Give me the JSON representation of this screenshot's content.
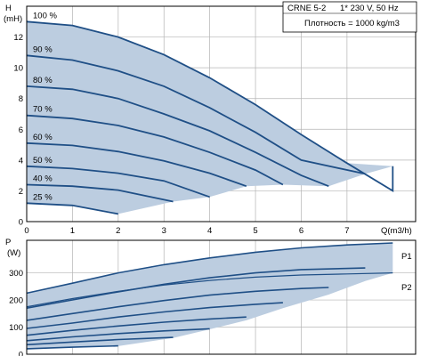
{
  "info": {
    "model": "CRNE 5-2",
    "supply": "1* 230 V, 50 Hz",
    "density": "Плотность = 1000 kg/m3"
  },
  "colors": {
    "area": "#bccde0",
    "curve": "#1f4f86",
    "grid": "#b4b4b4"
  },
  "chart_data": [
    {
      "type": "line",
      "name": "head",
      "ylabel_top": "H",
      "ylabel_unit": "(mH)",
      "xlabel": "Q(m3/h)",
      "xlim": [
        0,
        8.5
      ],
      "ylim": [
        0,
        14
      ],
      "xticks": [
        0,
        1,
        2,
        3,
        4,
        5,
        6,
        7
      ],
      "yticks": [
        0,
        2,
        4,
        6,
        8,
        10,
        12
      ],
      "grid": true,
      "speeds": [
        {
          "label": "100 %",
          "points": [
            [
              0,
              13.0
            ],
            [
              1,
              12.75
            ],
            [
              2,
              12.0
            ],
            [
              3,
              10.85
            ],
            [
              4,
              9.35
            ],
            [
              5,
              7.6
            ],
            [
              6,
              5.65
            ],
            [
              7,
              3.8
            ],
            [
              8,
              2.0
            ],
            [
              8.0,
              3.6
            ]
          ]
        },
        {
          "label": "90 %",
          "points": [
            [
              0,
              10.8
            ],
            [
              1,
              10.5
            ],
            [
              2,
              9.8
            ],
            [
              3,
              8.8
            ],
            [
              4,
              7.4
            ],
            [
              5,
              5.8
            ],
            [
              6,
              4.0
            ],
            [
              7.4,
              3.1
            ]
          ]
        },
        {
          "label": "80 %",
          "points": [
            [
              0,
              8.8
            ],
            [
              1,
              8.6
            ],
            [
              2,
              8.0
            ],
            [
              3,
              7.0
            ],
            [
              4,
              5.9
            ],
            [
              5,
              4.5
            ],
            [
              6,
              3.0
            ],
            [
              6.6,
              2.3
            ]
          ]
        },
        {
          "label": "70 %",
          "points": [
            [
              0,
              6.9
            ],
            [
              1,
              6.7
            ],
            [
              2,
              6.25
            ],
            [
              3,
              5.5
            ],
            [
              4,
              4.5
            ],
            [
              5,
              3.35
            ],
            [
              5.6,
              2.4
            ]
          ]
        },
        {
          "label": "60 %",
          "points": [
            [
              0,
              5.1
            ],
            [
              1,
              4.95
            ],
            [
              2,
              4.55
            ],
            [
              3,
              3.95
            ],
            [
              4,
              3.15
            ],
            [
              4.8,
              2.3
            ]
          ]
        },
        {
          "label": "50 %",
          "points": [
            [
              0,
              3.6
            ],
            [
              1,
              3.45
            ],
            [
              2,
              3.15
            ],
            [
              3,
              2.65
            ],
            [
              4,
              1.6
            ]
          ]
        },
        {
          "label": "40 %",
          "points": [
            [
              0,
              2.4
            ],
            [
              1,
              2.3
            ],
            [
              2,
              2.05
            ],
            [
              3.2,
              1.3
            ]
          ]
        },
        {
          "label": "25 %",
          "points": [
            [
              0,
              1.2
            ],
            [
              1,
              1.05
            ],
            [
              2,
              0.5
            ]
          ]
        }
      ],
      "envelope": [
        [
          0,
          13.0
        ],
        [
          1,
          12.75
        ],
        [
          2,
          12.0
        ],
        [
          3,
          10.85
        ],
        [
          4,
          9.35
        ],
        [
          5,
          7.6
        ],
        [
          6,
          5.65
        ],
        [
          7,
          3.8
        ],
        [
          8.0,
          3.6
        ],
        [
          7.4,
          3.1
        ],
        [
          6.6,
          2.3
        ],
        [
          5.6,
          2.4
        ],
        [
          4.8,
          2.3
        ],
        [
          4,
          1.6
        ],
        [
          3.2,
          1.3
        ],
        [
          2,
          0.5
        ],
        [
          1,
          1.05
        ],
        [
          0,
          1.2
        ]
      ]
    },
    {
      "type": "line",
      "name": "power",
      "ylabel_top": "P",
      "ylabel_unit": "(W)",
      "xlim": [
        0,
        8.5
      ],
      "ylim": [
        0,
        420
      ],
      "yticks": [
        0,
        100,
        200,
        300
      ],
      "grid": true,
      "series_labels": [
        "P1",
        "P2"
      ],
      "p1": [
        {
          "label": "100 %",
          "points": [
            [
              0,
              225
            ],
            [
              1,
              262
            ],
            [
              2,
              300
            ],
            [
              3,
              330
            ],
            [
              4,
              355
            ],
            [
              5,
              376
            ],
            [
              6,
              392
            ],
            [
              7,
              403
            ],
            [
              8,
              410
            ],
            [
              8.0,
              410
            ]
          ]
        },
        {
          "label": "90 %",
          "points": [
            [
              0,
              170
            ],
            [
              1,
              200
            ],
            [
              2,
              230
            ],
            [
              3,
              258
            ],
            [
              4,
              282
            ],
            [
              5,
              300
            ],
            [
              6,
              312
            ],
            [
              7.4,
              318
            ]
          ]
        },
        {
          "label": "80 %",
          "points": [
            [
              0,
              125
            ],
            [
              1,
              150
            ],
            [
              2,
              175
            ],
            [
              3,
              198
            ],
            [
              4,
              218
            ],
            [
              5,
              232
            ],
            [
              6,
              242
            ],
            [
              6.6,
              246
            ]
          ]
        },
        {
          "label": "70 %",
          "points": [
            [
              0,
              95
            ],
            [
              1,
              115
            ],
            [
              2,
              137
            ],
            [
              3,
              156
            ],
            [
              4,
              172
            ],
            [
              5,
              184
            ],
            [
              5.6,
              190
            ]
          ]
        },
        {
          "label": "60 %",
          "points": [
            [
              0,
              70
            ],
            [
              1,
              88
            ],
            [
              2,
              104
            ],
            [
              3,
              118
            ],
            [
              4,
              130
            ],
            [
              4.8,
              137
            ]
          ]
        },
        {
          "label": "50 %",
          "points": [
            [
              0,
              50
            ],
            [
              1,
              64
            ],
            [
              2,
              76
            ],
            [
              3,
              86
            ],
            [
              4,
              94
            ]
          ]
        },
        {
          "label": "40 %",
          "points": [
            [
              0,
              35
            ],
            [
              1,
              45
            ],
            [
              2,
              54
            ],
            [
              3.2,
              62
            ]
          ]
        },
        {
          "label": "25 %",
          "points": [
            [
              0,
              20
            ],
            [
              1,
              26
            ],
            [
              2,
              31
            ]
          ]
        }
      ],
      "p2": [
        {
          "label": "100 %",
          "points": [
            [
              0,
              175
            ],
            [
              1,
              205
            ],
            [
              2,
              232
            ],
            [
              3,
              255
            ],
            [
              4,
              272
            ],
            [
              5,
              284
            ],
            [
              6,
              292
            ],
            [
              7,
              296
            ],
            [
              8,
              300
            ]
          ]
        }
      ],
      "envelope_p1": [
        [
          0,
          225
        ],
        [
          1,
          262
        ],
        [
          2,
          300
        ],
        [
          3,
          330
        ],
        [
          4,
          355
        ],
        [
          5,
          376
        ],
        [
          6,
          392
        ],
        [
          7,
          403
        ],
        [
          8,
          410
        ],
        [
          8.0,
          300
        ],
        [
          7.4,
          270
        ],
        [
          6.6,
          220
        ],
        [
          5.6,
          170
        ],
        [
          4.8,
          125
        ],
        [
          4,
          92
        ],
        [
          3.2,
          60
        ],
        [
          2,
          30
        ],
        [
          1,
          26
        ],
        [
          0,
          20
        ]
      ]
    }
  ]
}
